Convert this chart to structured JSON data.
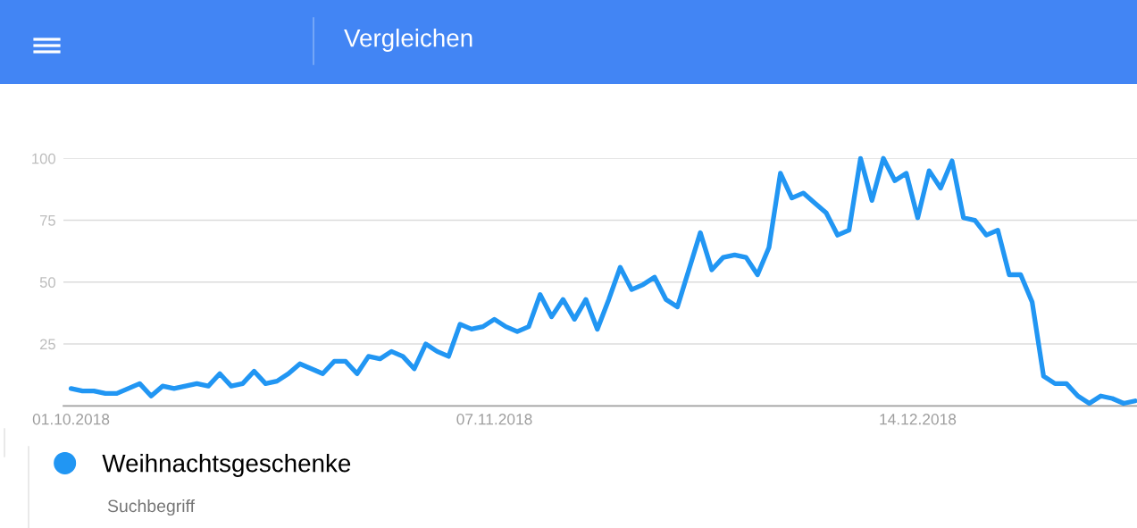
{
  "chart_data": {
    "type": "line",
    "title": "Vergleichen",
    "x": [
      "2018-10-01",
      "2018-10-02",
      "2018-10-03",
      "2018-10-04",
      "2018-10-05",
      "2018-10-06",
      "2018-10-07",
      "2018-10-08",
      "2018-10-09",
      "2018-10-10",
      "2018-10-11",
      "2018-10-12",
      "2018-10-13",
      "2018-10-14",
      "2018-10-15",
      "2018-10-16",
      "2018-10-17",
      "2018-10-18",
      "2018-10-19",
      "2018-10-20",
      "2018-10-21",
      "2018-10-22",
      "2018-10-23",
      "2018-10-24",
      "2018-10-25",
      "2018-10-26",
      "2018-10-27",
      "2018-10-28",
      "2018-10-29",
      "2018-10-30",
      "2018-10-31",
      "2018-11-01",
      "2018-11-02",
      "2018-11-03",
      "2018-11-04",
      "2018-11-05",
      "2018-11-06",
      "2018-11-07",
      "2018-11-08",
      "2018-11-09",
      "2018-11-10",
      "2018-11-11",
      "2018-11-12",
      "2018-11-13",
      "2018-11-14",
      "2018-11-15",
      "2018-11-16",
      "2018-11-17",
      "2018-11-18",
      "2018-11-19",
      "2018-11-20",
      "2018-11-21",
      "2018-11-22",
      "2018-11-23",
      "2018-11-24",
      "2018-11-25",
      "2018-11-26",
      "2018-11-27",
      "2018-11-28",
      "2018-11-29",
      "2018-11-30",
      "2018-12-01",
      "2018-12-02",
      "2018-12-03",
      "2018-12-04",
      "2018-12-05",
      "2018-12-06",
      "2018-12-07",
      "2018-12-08",
      "2018-12-09",
      "2018-12-10",
      "2018-12-11",
      "2018-12-12",
      "2018-12-13",
      "2018-12-14",
      "2018-12-15",
      "2018-12-16",
      "2018-12-17",
      "2018-12-18",
      "2018-12-19",
      "2018-12-20",
      "2018-12-21",
      "2018-12-22",
      "2018-12-23",
      "2018-12-24",
      "2018-12-25",
      "2018-12-26",
      "2018-12-27",
      "2018-12-28",
      "2018-12-29",
      "2018-12-30",
      "2018-12-31",
      "2019-01-01",
      "2019-01-02"
    ],
    "series": [
      {
        "name": "Weihnachtsgeschenke",
        "color": "#2196f3",
        "values": [
          7,
          6,
          6,
          5,
          5,
          7,
          9,
          4,
          8,
          7,
          8,
          9,
          8,
          13,
          8,
          9,
          14,
          9,
          10,
          13,
          17,
          15,
          13,
          18,
          18,
          13,
          20,
          19,
          22,
          20,
          15,
          25,
          22,
          20,
          33,
          31,
          32,
          35,
          32,
          30,
          32,
          45,
          36,
          43,
          35,
          43,
          31,
          43,
          56,
          47,
          49,
          52,
          43,
          40,
          55,
          70,
          55,
          60,
          61,
          60,
          53,
          64,
          94,
          84,
          86,
          82,
          78,
          69,
          71,
          100,
          83,
          100,
          91,
          94,
          76,
          95,
          88,
          99,
          76,
          75,
          69,
          71,
          53,
          53,
          42,
          12,
          9,
          9,
          4,
          1,
          4,
          3,
          1,
          2
        ]
      }
    ],
    "xlim": [
      "2018-09-30T08:00",
      "2019-01-02T04:00"
    ],
    "xticks": [
      {
        "value": "2018-10-01",
        "label": "01.10.2018"
      },
      {
        "value": "2018-11-07",
        "label": "07.11.2018"
      },
      {
        "value": "2018-12-14",
        "label": "14.12.2018"
      }
    ],
    "ylim": [
      0,
      100
    ],
    "yticks": [
      25,
      50,
      75,
      100
    ],
    "grid": "y",
    "legend": "bottom left",
    "line_style": "solid",
    "annotations": [
      "Suchbegriff"
    ]
  }
}
